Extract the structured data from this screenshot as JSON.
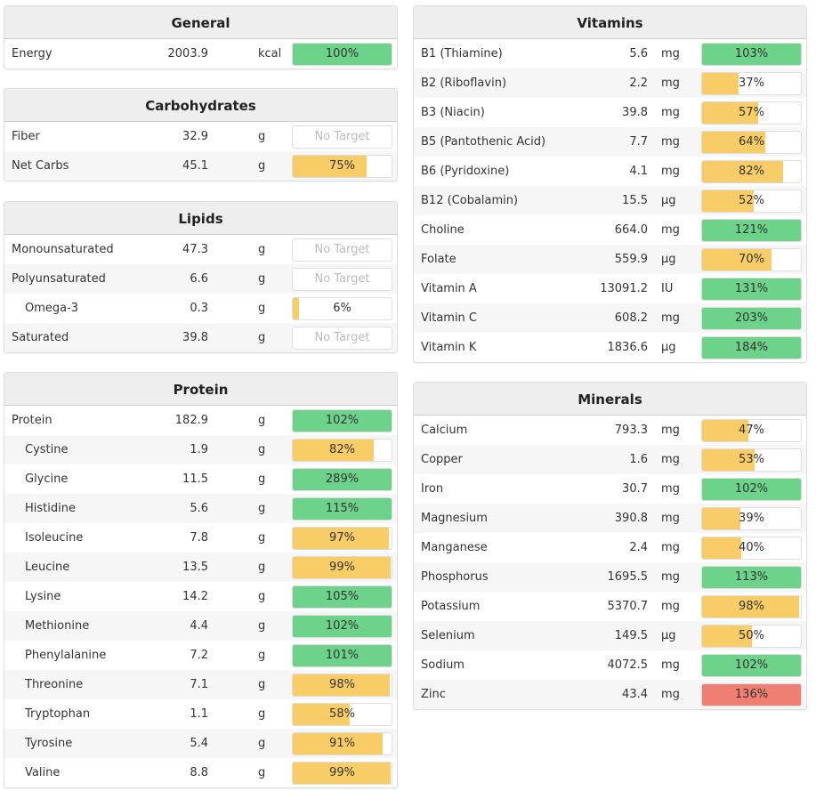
{
  "colors": {
    "ok": "#6dd38b",
    "low": "#f8cd67",
    "high": "#ef7f72"
  },
  "left": [
    {
      "title": "General",
      "items": [
        {
          "name": "Energy",
          "value": "2003.9",
          "unit": "kcal",
          "pct": "100%",
          "status": "ok"
        }
      ]
    },
    {
      "title": "Carbohydrates",
      "items": [
        {
          "name": "Fiber",
          "value": "32.9",
          "unit": "g",
          "pct": "No Target",
          "status": "none"
        },
        {
          "name": "Net Carbs",
          "value": "45.1",
          "unit": "g",
          "pct": "75%",
          "status": "low"
        }
      ]
    },
    {
      "title": "Lipids",
      "items": [
        {
          "name": "Monounsaturated",
          "value": "47.3",
          "unit": "g",
          "pct": "No Target",
          "status": "none"
        },
        {
          "name": "Polyunsaturated",
          "value": "6.6",
          "unit": "g",
          "pct": "No Target",
          "status": "none"
        },
        {
          "name": "Omega-3",
          "value": "0.3",
          "unit": "g",
          "pct": "6%",
          "status": "low",
          "sub": true
        },
        {
          "name": "Saturated",
          "value": "39.8",
          "unit": "g",
          "pct": "No Target",
          "status": "none"
        }
      ]
    },
    {
      "title": "Protein",
      "items": [
        {
          "name": "Protein",
          "value": "182.9",
          "unit": "g",
          "pct": "102%",
          "status": "ok"
        },
        {
          "name": "Cystine",
          "value": "1.9",
          "unit": "g",
          "pct": "82%",
          "status": "low",
          "sub": true
        },
        {
          "name": "Glycine",
          "value": "11.5",
          "unit": "g",
          "pct": "289%",
          "status": "ok",
          "sub": true
        },
        {
          "name": "Histidine",
          "value": "5.6",
          "unit": "g",
          "pct": "115%",
          "status": "ok",
          "sub": true
        },
        {
          "name": "Isoleucine",
          "value": "7.8",
          "unit": "g",
          "pct": "97%",
          "status": "low",
          "sub": true
        },
        {
          "name": "Leucine",
          "value": "13.5",
          "unit": "g",
          "pct": "99%",
          "status": "low",
          "sub": true
        },
        {
          "name": "Lysine",
          "value": "14.2",
          "unit": "g",
          "pct": "105%",
          "status": "ok",
          "sub": true
        },
        {
          "name": "Methionine",
          "value": "4.4",
          "unit": "g",
          "pct": "102%",
          "status": "ok",
          "sub": true
        },
        {
          "name": "Phenylalanine",
          "value": "7.2",
          "unit": "g",
          "pct": "101%",
          "status": "ok",
          "sub": true
        },
        {
          "name": "Threonine",
          "value": "7.1",
          "unit": "g",
          "pct": "98%",
          "status": "low",
          "sub": true
        },
        {
          "name": "Tryptophan",
          "value": "1.1",
          "unit": "g",
          "pct": "58%",
          "status": "low",
          "sub": true
        },
        {
          "name": "Tyrosine",
          "value": "5.4",
          "unit": "g",
          "pct": "91%",
          "status": "low",
          "sub": true
        },
        {
          "name": "Valine",
          "value": "8.8",
          "unit": "g",
          "pct": "99%",
          "status": "low",
          "sub": true
        }
      ]
    }
  ],
  "right": [
    {
      "title": "Vitamins",
      "items": [
        {
          "name": "B1 (Thiamine)",
          "value": "5.6",
          "unit": "mg",
          "pct": "103%",
          "status": "ok"
        },
        {
          "name": "B2 (Riboflavin)",
          "value": "2.2",
          "unit": "mg",
          "pct": "37%",
          "status": "low"
        },
        {
          "name": "B3 (Niacin)",
          "value": "39.8",
          "unit": "mg",
          "pct": "57%",
          "status": "low"
        },
        {
          "name": "B5 (Pantothenic Acid)",
          "value": "7.7",
          "unit": "mg",
          "pct": "64%",
          "status": "low"
        },
        {
          "name": "B6 (Pyridoxine)",
          "value": "4.1",
          "unit": "mg",
          "pct": "82%",
          "status": "low"
        },
        {
          "name": "B12 (Cobalamin)",
          "value": "15.5",
          "unit": "µg",
          "pct": "52%",
          "status": "low"
        },
        {
          "name": "Choline",
          "value": "664.0",
          "unit": "mg",
          "pct": "121%",
          "status": "ok"
        },
        {
          "name": "Folate",
          "value": "559.9",
          "unit": "µg",
          "pct": "70%",
          "status": "low"
        },
        {
          "name": "Vitamin A",
          "value": "13091.2",
          "unit": "IU",
          "pct": "131%",
          "status": "ok"
        },
        {
          "name": "Vitamin C",
          "value": "608.2",
          "unit": "mg",
          "pct": "203%",
          "status": "ok"
        },
        {
          "name": "Vitamin K",
          "value": "1836.6",
          "unit": "µg",
          "pct": "184%",
          "status": "ok"
        }
      ]
    },
    {
      "title": "Minerals",
      "items": [
        {
          "name": "Calcium",
          "value": "793.3",
          "unit": "mg",
          "pct": "47%",
          "status": "low"
        },
        {
          "name": "Copper",
          "value": "1.6",
          "unit": "mg",
          "pct": "53%",
          "status": "low"
        },
        {
          "name": "Iron",
          "value": "30.7",
          "unit": "mg",
          "pct": "102%",
          "status": "ok"
        },
        {
          "name": "Magnesium",
          "value": "390.8",
          "unit": "mg",
          "pct": "39%",
          "status": "low"
        },
        {
          "name": "Manganese",
          "value": "2.4",
          "unit": "mg",
          "pct": "40%",
          "status": "low"
        },
        {
          "name": "Phosphorus",
          "value": "1695.5",
          "unit": "mg",
          "pct": "113%",
          "status": "ok"
        },
        {
          "name": "Potassium",
          "value": "5370.7",
          "unit": "mg",
          "pct": "98%",
          "status": "low"
        },
        {
          "name": "Selenium",
          "value": "149.5",
          "unit": "µg",
          "pct": "50%",
          "status": "low"
        },
        {
          "name": "Sodium",
          "value": "4072.5",
          "unit": "mg",
          "pct": "102%",
          "status": "ok"
        },
        {
          "name": "Zinc",
          "value": "43.4",
          "unit": "mg",
          "pct": "136%",
          "status": "high"
        }
      ]
    }
  ]
}
